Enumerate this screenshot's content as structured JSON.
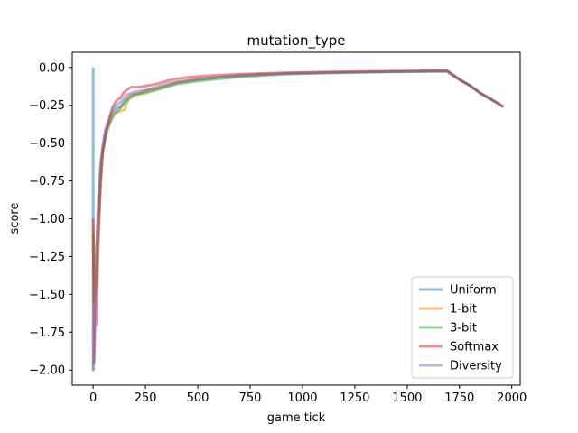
{
  "chart_data": {
    "type": "line",
    "title": "mutation_type",
    "xlabel": "game tick",
    "ylabel": "score",
    "xlim": [
      -100,
      2040
    ],
    "ylim": [
      -2.1,
      0.1
    ],
    "xticks": [
      0,
      250,
      500,
      750,
      1000,
      1250,
      1500,
      1750,
      2000
    ],
    "yticks": [
      0.0,
      -0.25,
      -0.5,
      -0.75,
      -1.0,
      -1.25,
      -1.5,
      -1.75,
      -2.0
    ],
    "xtick_labels": [
      "0",
      "250",
      "500",
      "750",
      "1000",
      "1250",
      "1500",
      "1750",
      "2000"
    ],
    "ytick_labels": [
      "0.00",
      "−0.25",
      "−0.50",
      "−0.75",
      "−1.00",
      "−1.25",
      "−1.50",
      "−1.75",
      "−2.00"
    ],
    "legend_position": "lower-right",
    "grid": false,
    "series": [
      {
        "name": "Uniform",
        "color": "#1f77b4",
        "points": [
          [
            0,
            0.0
          ],
          [
            0,
            -2.0
          ],
          [
            10,
            -1.45
          ],
          [
            20,
            -1.1
          ],
          [
            30,
            -0.8
          ],
          [
            40,
            -0.6
          ],
          [
            55,
            -0.48
          ],
          [
            70,
            -0.38
          ],
          [
            90,
            -0.3
          ],
          [
            110,
            -0.27
          ],
          [
            130,
            -0.26
          ],
          [
            150,
            -0.22
          ],
          [
            180,
            -0.18
          ],
          [
            220,
            -0.17
          ],
          [
            260,
            -0.15
          ],
          [
            300,
            -0.14
          ],
          [
            350,
            -0.12
          ],
          [
            400,
            -0.1
          ],
          [
            450,
            -0.09
          ],
          [
            500,
            -0.08
          ],
          [
            600,
            -0.065
          ],
          [
            700,
            -0.055
          ],
          [
            800,
            -0.048
          ],
          [
            900,
            -0.042
          ],
          [
            1000,
            -0.038
          ],
          [
            1200,
            -0.032
          ],
          [
            1400,
            -0.028
          ],
          [
            1600,
            -0.025
          ],
          [
            1690,
            -0.024
          ],
          [
            1750,
            -0.08
          ],
          [
            1800,
            -0.12
          ],
          [
            1850,
            -0.17
          ],
          [
            1900,
            -0.21
          ],
          [
            1960,
            -0.26
          ]
        ]
      },
      {
        "name": "1-bit",
        "color": "#ff7f0e",
        "points": [
          [
            0,
            -1.05
          ],
          [
            5,
            -1.5
          ],
          [
            15,
            -1.35
          ],
          [
            25,
            -1.05
          ],
          [
            35,
            -0.7
          ],
          [
            45,
            -0.55
          ],
          [
            60,
            -0.42
          ],
          [
            80,
            -0.35
          ],
          [
            100,
            -0.3
          ],
          [
            130,
            -0.29
          ],
          [
            150,
            -0.28
          ],
          [
            170,
            -0.2
          ],
          [
            200,
            -0.18
          ],
          [
            250,
            -0.16
          ],
          [
            300,
            -0.14
          ],
          [
            350,
            -0.12
          ],
          [
            400,
            -0.1
          ],
          [
            450,
            -0.09
          ],
          [
            500,
            -0.08
          ],
          [
            600,
            -0.065
          ],
          [
            700,
            -0.055
          ],
          [
            800,
            -0.048
          ],
          [
            900,
            -0.042
          ],
          [
            1000,
            -0.038
          ],
          [
            1200,
            -0.032
          ],
          [
            1400,
            -0.028
          ],
          [
            1600,
            -0.025
          ],
          [
            1690,
            -0.024
          ],
          [
            1750,
            -0.08
          ],
          [
            1800,
            -0.12
          ],
          [
            1850,
            -0.17
          ],
          [
            1900,
            -0.21
          ],
          [
            1960,
            -0.26
          ]
        ]
      },
      {
        "name": "3-bit",
        "color": "#2ca02c",
        "points": [
          [
            0,
            -1.1
          ],
          [
            5,
            -1.55
          ],
          [
            15,
            -1.4
          ],
          [
            25,
            -1.0
          ],
          [
            35,
            -0.75
          ],
          [
            45,
            -0.58
          ],
          [
            60,
            -0.45
          ],
          [
            80,
            -0.37
          ],
          [
            100,
            -0.31
          ],
          [
            130,
            -0.27
          ],
          [
            160,
            -0.22
          ],
          [
            200,
            -0.18
          ],
          [
            250,
            -0.17
          ],
          [
            300,
            -0.15
          ],
          [
            350,
            -0.13
          ],
          [
            400,
            -0.11
          ],
          [
            450,
            -0.1
          ],
          [
            500,
            -0.09
          ],
          [
            600,
            -0.075
          ],
          [
            700,
            -0.062
          ],
          [
            800,
            -0.053
          ],
          [
            900,
            -0.046
          ],
          [
            1000,
            -0.041
          ],
          [
            1200,
            -0.035
          ],
          [
            1400,
            -0.03
          ],
          [
            1600,
            -0.027
          ],
          [
            1690,
            -0.026
          ],
          [
            1750,
            -0.08
          ],
          [
            1800,
            -0.12
          ],
          [
            1850,
            -0.17
          ],
          [
            1900,
            -0.21
          ],
          [
            1960,
            -0.26
          ]
        ]
      },
      {
        "name": "Softmax",
        "color": "#d62728",
        "points": [
          [
            0,
            -1.0
          ],
          [
            5,
            -1.95
          ],
          [
            10,
            -1.6
          ],
          [
            15,
            -1.7
          ],
          [
            25,
            -1.15
          ],
          [
            35,
            -0.8
          ],
          [
            45,
            -0.55
          ],
          [
            60,
            -0.42
          ],
          [
            75,
            -0.36
          ],
          [
            90,
            -0.27
          ],
          [
            110,
            -0.22
          ],
          [
            130,
            -0.2
          ],
          [
            150,
            -0.16
          ],
          [
            180,
            -0.13
          ],
          [
            220,
            -0.13
          ],
          [
            260,
            -0.12
          ],
          [
            300,
            -0.11
          ],
          [
            350,
            -0.09
          ],
          [
            400,
            -0.075
          ],
          [
            450,
            -0.065
          ],
          [
            500,
            -0.06
          ],
          [
            600,
            -0.05
          ],
          [
            700,
            -0.045
          ],
          [
            800,
            -0.04
          ],
          [
            900,
            -0.036
          ],
          [
            1000,
            -0.033
          ],
          [
            1200,
            -0.028
          ],
          [
            1400,
            -0.025
          ],
          [
            1600,
            -0.022
          ],
          [
            1690,
            -0.02
          ],
          [
            1750,
            -0.08
          ],
          [
            1800,
            -0.12
          ],
          [
            1850,
            -0.17
          ],
          [
            1900,
            -0.21
          ],
          [
            1960,
            -0.26
          ]
        ]
      },
      {
        "name": "Diversity",
        "color": "#9467bd",
        "points": [
          [
            0,
            -2.0
          ],
          [
            8,
            -1.6
          ],
          [
            15,
            -1.2
          ],
          [
            25,
            -0.85
          ],
          [
            35,
            -0.65
          ],
          [
            45,
            -0.52
          ],
          [
            60,
            -0.4
          ],
          [
            80,
            -0.32
          ],
          [
            100,
            -0.26
          ],
          [
            130,
            -0.23
          ],
          [
            160,
            -0.18
          ],
          [
            200,
            -0.16
          ],
          [
            250,
            -0.15
          ],
          [
            300,
            -0.13
          ],
          [
            350,
            -0.11
          ],
          [
            400,
            -0.095
          ],
          [
            450,
            -0.085
          ],
          [
            500,
            -0.075
          ],
          [
            600,
            -0.062
          ],
          [
            700,
            -0.052
          ],
          [
            800,
            -0.045
          ],
          [
            900,
            -0.04
          ],
          [
            1000,
            -0.036
          ],
          [
            1200,
            -0.031
          ],
          [
            1400,
            -0.027
          ],
          [
            1600,
            -0.024
          ],
          [
            1690,
            -0.023
          ],
          [
            1750,
            -0.08
          ],
          [
            1800,
            -0.12
          ],
          [
            1850,
            -0.17
          ],
          [
            1900,
            -0.21
          ],
          [
            1960,
            -0.26
          ]
        ]
      }
    ]
  }
}
